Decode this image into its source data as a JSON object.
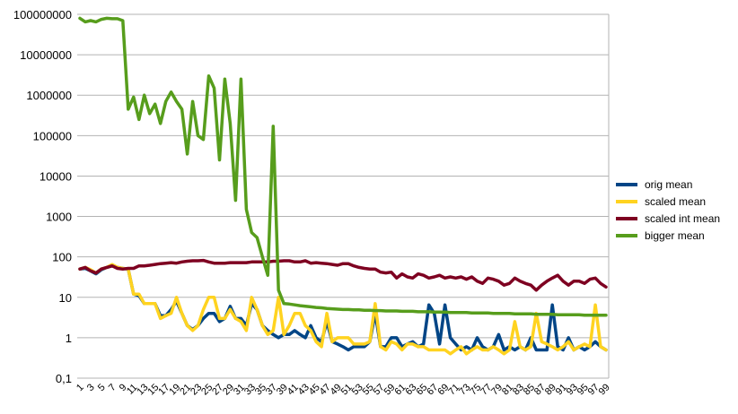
{
  "chart_data": {
    "type": "line",
    "title": "",
    "xlabel": "",
    "ylabel": "",
    "y_scale": "log",
    "ylim": [
      0.1,
      100000000
    ],
    "y_tick_labels": [
      "0,1",
      "1",
      "10",
      "100",
      "1000",
      "10000",
      "100000",
      "1000000",
      "10000000",
      "100000000"
    ],
    "x": [
      1,
      2,
      3,
      4,
      5,
      6,
      7,
      8,
      9,
      10,
      11,
      12,
      13,
      14,
      15,
      16,
      17,
      18,
      19,
      20,
      21,
      22,
      23,
      24,
      25,
      26,
      27,
      28,
      29,
      30,
      31,
      32,
      33,
      34,
      35,
      36,
      37,
      38,
      39,
      40,
      41,
      42,
      43,
      44,
      45,
      46,
      47,
      48,
      49,
      50,
      51,
      52,
      53,
      54,
      55,
      56,
      57,
      58,
      59,
      60,
      61,
      62,
      63,
      64,
      65,
      66,
      67,
      68,
      69,
      70,
      71,
      72,
      73,
      74,
      75,
      76,
      77,
      78,
      79,
      80,
      81,
      82,
      83,
      84,
      85,
      86,
      87,
      88,
      89,
      90,
      91,
      92,
      93,
      94,
      95,
      96,
      97,
      98,
      99
    ],
    "x_tick_labels": [
      "1",
      "5",
      "9",
      "13",
      "17",
      "21",
      "25",
      "29",
      "33",
      "37",
      "41",
      "45",
      "49",
      "53",
      "57",
      "61",
      "65",
      "69",
      "73",
      "77",
      "81",
      "85",
      "89",
      "93",
      "97"
    ],
    "x_tick_labels_extra": [
      "3",
      "7",
      "11",
      "15",
      "19",
      "23",
      "27",
      "31",
      "35",
      "39",
      "43",
      "47",
      "51",
      "55",
      "59",
      "63",
      "67",
      "71",
      "75",
      "79",
      "83",
      "87",
      "91",
      "95",
      "99"
    ],
    "grid": true,
    "legend_position": "right",
    "series": [
      {
        "name": "orig mean",
        "color": "#004586",
        "values": [
          50,
          52,
          45,
          38,
          48,
          55,
          60,
          55,
          52,
          50,
          12,
          11,
          7,
          7,
          7,
          3.5,
          3.5,
          5,
          8,
          4,
          2,
          1.6,
          2,
          3,
          4,
          4,
          2.5,
          3,
          6,
          3,
          3,
          2,
          7,
          5,
          2,
          1.5,
          1.2,
          1,
          1.2,
          1.2,
          1.5,
          1.2,
          1,
          2,
          1,
          0.8,
          2.5,
          0.8,
          0.7,
          0.6,
          0.5,
          0.6,
          0.6,
          0.6,
          0.8,
          4,
          0.6,
          0.6,
          1,
          1,
          0.6,
          0.7,
          0.8,
          0.6,
          0.7,
          6.5,
          4,
          0.7,
          6.5,
          1,
          0.7,
          0.5,
          0.6,
          0.5,
          1,
          0.6,
          0.5,
          0.6,
          1.2,
          0.5,
          0.6,
          0.5,
          0.6,
          0.5,
          1,
          0.5,
          0.5,
          0.5,
          6.5,
          0.6,
          0.5,
          1,
          0.5,
          0.6,
          0.5,
          0.6,
          0.8,
          0.6,
          0.5
        ]
      },
      {
        "name": "scaled mean",
        "color": "#ffd320",
        "values": [
          50,
          55,
          48,
          40,
          50,
          55,
          65,
          55,
          52,
          50,
          12,
          12,
          7,
          7,
          7,
          3,
          3.5,
          4,
          10,
          4,
          2,
          1.5,
          2,
          5,
          10,
          10,
          3,
          3,
          5,
          3,
          2.5,
          1.5,
          10,
          5,
          2,
          1.2,
          1.5,
          10,
          1.2,
          2,
          4,
          4,
          2,
          1.5,
          0.8,
          0.6,
          4,
          0.8,
          1,
          1,
          1,
          0.7,
          0.7,
          0.7,
          0.8,
          7,
          0.6,
          0.5,
          0.8,
          0.7,
          0.5,
          0.7,
          0.7,
          0.6,
          0.6,
          0.5,
          0.5,
          0.5,
          0.5,
          0.4,
          0.5,
          0.6,
          0.4,
          0.5,
          0.6,
          0.5,
          0.5,
          0.6,
          0.5,
          0.4,
          0.5,
          2.5,
          0.6,
          0.5,
          0.6,
          4,
          0.8,
          0.7,
          0.6,
          0.5,
          0.6,
          0.8,
          0.5,
          0.6,
          0.7,
          0.6,
          6.5,
          0.6,
          0.5
        ]
      },
      {
        "name": "scaled int mean",
        "color": "#7e0021",
        "values": [
          50,
          55,
          45,
          40,
          50,
          55,
          60,
          52,
          50,
          52,
          52,
          60,
          60,
          62,
          65,
          68,
          70,
          72,
          70,
          75,
          78,
          80,
          80,
          82,
          75,
          70,
          70,
          70,
          72,
          72,
          72,
          72,
          75,
          75,
          75,
          75,
          78,
          78,
          80,
          80,
          75,
          75,
          80,
          70,
          72,
          70,
          68,
          65,
          62,
          68,
          68,
          60,
          55,
          52,
          50,
          50,
          42,
          40,
          42,
          30,
          38,
          32,
          30,
          38,
          35,
          30,
          32,
          35,
          30,
          32,
          30,
          32,
          28,
          32,
          25,
          22,
          30,
          28,
          25,
          20,
          22,
          30,
          25,
          22,
          20,
          15,
          20,
          25,
          30,
          35,
          25,
          20,
          25,
          25,
          22,
          28,
          30,
          22,
          18
        ]
      },
      {
        "name": "bigger mean",
        "color": "#579d1c",
        "values": [
          80000000,
          65000000,
          70000000,
          65000000,
          75000000,
          80000000,
          78000000,
          78000000,
          70000000,
          450000,
          900000,
          250000,
          1000000,
          350000,
          600000,
          200000,
          700000,
          1200000,
          700000,
          450000,
          35000,
          700000,
          100000,
          80000,
          3000000,
          1500000,
          25000,
          2500000,
          200000,
          2500,
          2500000,
          1500,
          400,
          300,
          100,
          35,
          170000,
          15,
          7,
          6.8,
          6.5,
          6.2,
          6,
          5.8,
          5.6,
          5.5,
          5.3,
          5.2,
          5.1,
          5,
          5,
          4.9,
          4.9,
          4.8,
          4.8,
          4.7,
          4.7,
          4.6,
          4.6,
          4.6,
          4.5,
          4.5,
          4.5,
          4.4,
          4.4,
          4.4,
          4.3,
          4.3,
          4.3,
          4.2,
          4.2,
          4.2,
          4.2,
          4.1,
          4.1,
          4.1,
          4.1,
          4,
          4,
          4,
          4,
          3.9,
          3.9,
          3.9,
          3.9,
          3.8,
          3.8,
          3.8,
          3.8,
          3.7,
          3.7,
          3.7,
          3.7,
          3.7,
          3.6,
          3.6,
          3.6,
          3.6,
          3.6
        ]
      }
    ]
  }
}
